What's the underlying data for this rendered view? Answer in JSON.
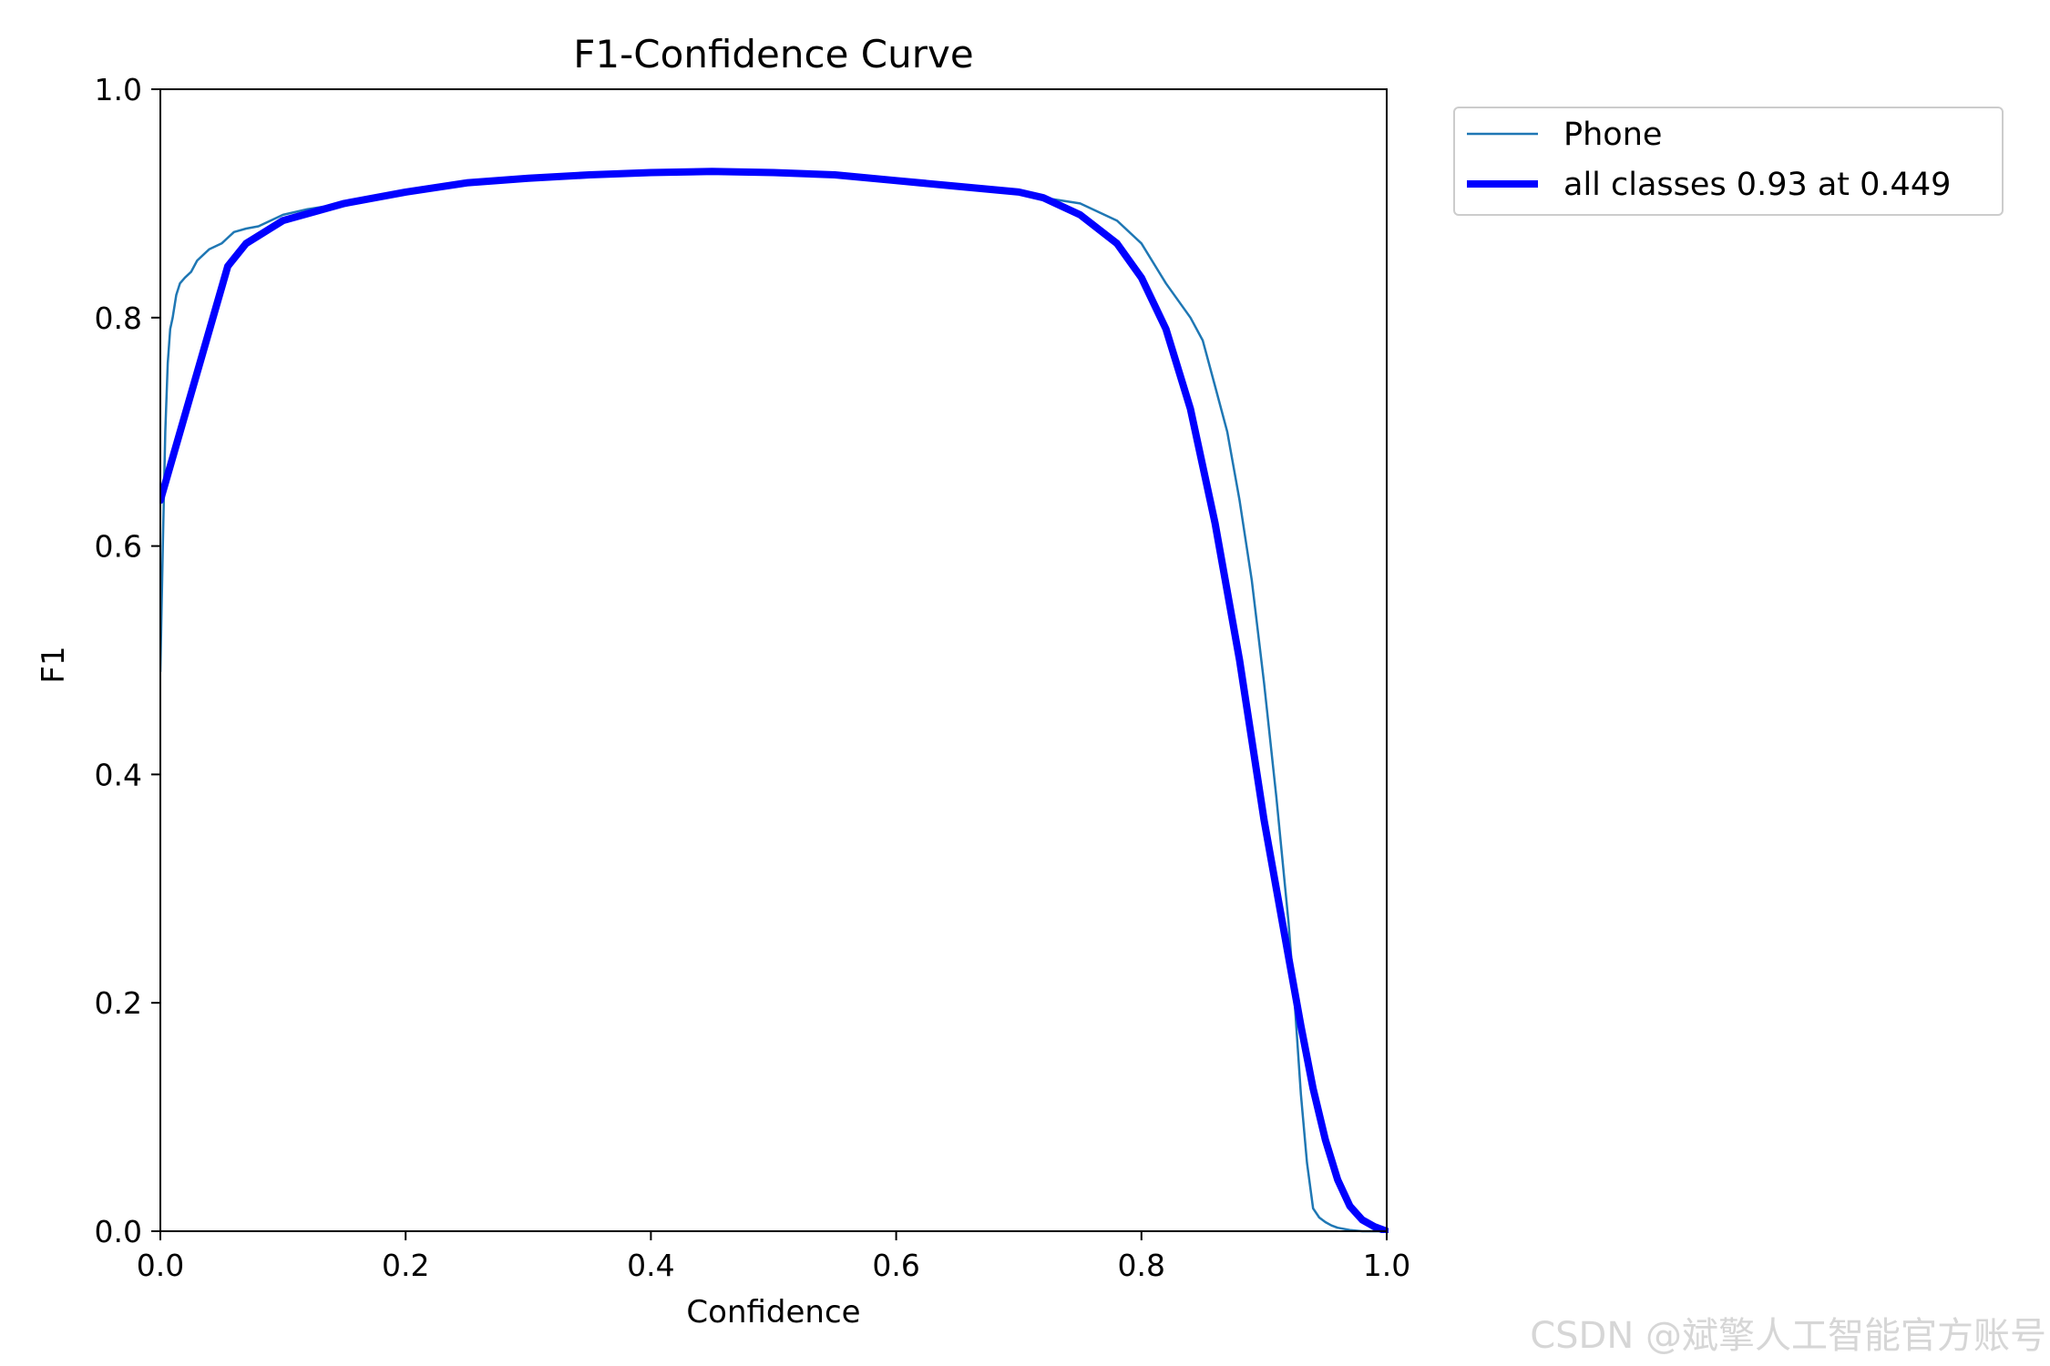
{
  "chart_data": {
    "type": "line",
    "title": "F1-Confidence Curve",
    "xlabel": "Confidence",
    "ylabel": "F1",
    "xlim": [
      0.0,
      1.0
    ],
    "ylim": [
      0.0,
      1.0
    ],
    "xticks": [
      "0.0",
      "0.2",
      "0.4",
      "0.6",
      "0.8",
      "1.0"
    ],
    "yticks": [
      "0.0",
      "0.2",
      "0.4",
      "0.6",
      "0.8",
      "1.0"
    ],
    "grid": false,
    "legend_position": "outside-top-right",
    "series": [
      {
        "name": "Phone",
        "color": "#1f77b4",
        "linewidth": "thin",
        "x": [
          0.0,
          0.002,
          0.004,
          0.006,
          0.008,
          0.01,
          0.013,
          0.016,
          0.02,
          0.025,
          0.03,
          0.035,
          0.04,
          0.05,
          0.06,
          0.07,
          0.08,
          0.1,
          0.12,
          0.15,
          0.2,
          0.25,
          0.3,
          0.35,
          0.4,
          0.45,
          0.5,
          0.55,
          0.6,
          0.65,
          0.7,
          0.72,
          0.75,
          0.78,
          0.8,
          0.82,
          0.84,
          0.85,
          0.86,
          0.87,
          0.88,
          0.89,
          0.9,
          0.91,
          0.92,
          0.925,
          0.93,
          0.935,
          0.94,
          0.945,
          0.95,
          0.955,
          0.96,
          0.97,
          0.98,
          1.0
        ],
        "y": [
          0.49,
          0.6,
          0.7,
          0.76,
          0.79,
          0.8,
          0.82,
          0.83,
          0.835,
          0.84,
          0.85,
          0.855,
          0.86,
          0.865,
          0.875,
          0.878,
          0.88,
          0.89,
          0.895,
          0.9,
          0.91,
          0.918,
          0.922,
          0.925,
          0.927,
          0.927,
          0.926,
          0.924,
          0.92,
          0.915,
          0.91,
          0.905,
          0.9,
          0.885,
          0.865,
          0.83,
          0.8,
          0.78,
          0.74,
          0.7,
          0.64,
          0.57,
          0.48,
          0.38,
          0.27,
          0.2,
          0.12,
          0.06,
          0.02,
          0.012,
          0.008,
          0.005,
          0.003,
          0.001,
          0.0,
          0.0
        ]
      },
      {
        "name": "all classes 0.93 at 0.449",
        "color": "#0000ff",
        "linewidth": "thick",
        "x": [
          0.0,
          0.055,
          0.07,
          0.1,
          0.15,
          0.2,
          0.25,
          0.3,
          0.35,
          0.4,
          0.45,
          0.5,
          0.55,
          0.6,
          0.65,
          0.7,
          0.72,
          0.75,
          0.78,
          0.8,
          0.82,
          0.84,
          0.86,
          0.88,
          0.9,
          0.92,
          0.93,
          0.94,
          0.95,
          0.96,
          0.97,
          0.98,
          0.99,
          1.0
        ],
        "y": [
          0.64,
          0.845,
          0.865,
          0.885,
          0.9,
          0.91,
          0.918,
          0.922,
          0.925,
          0.927,
          0.928,
          0.927,
          0.925,
          0.92,
          0.915,
          0.91,
          0.905,
          0.89,
          0.865,
          0.835,
          0.79,
          0.72,
          0.62,
          0.5,
          0.36,
          0.24,
          0.18,
          0.125,
          0.08,
          0.045,
          0.022,
          0.01,
          0.004,
          0.0
        ]
      }
    ]
  },
  "watermark": "CSDN @斌擎人工智能官方账号"
}
